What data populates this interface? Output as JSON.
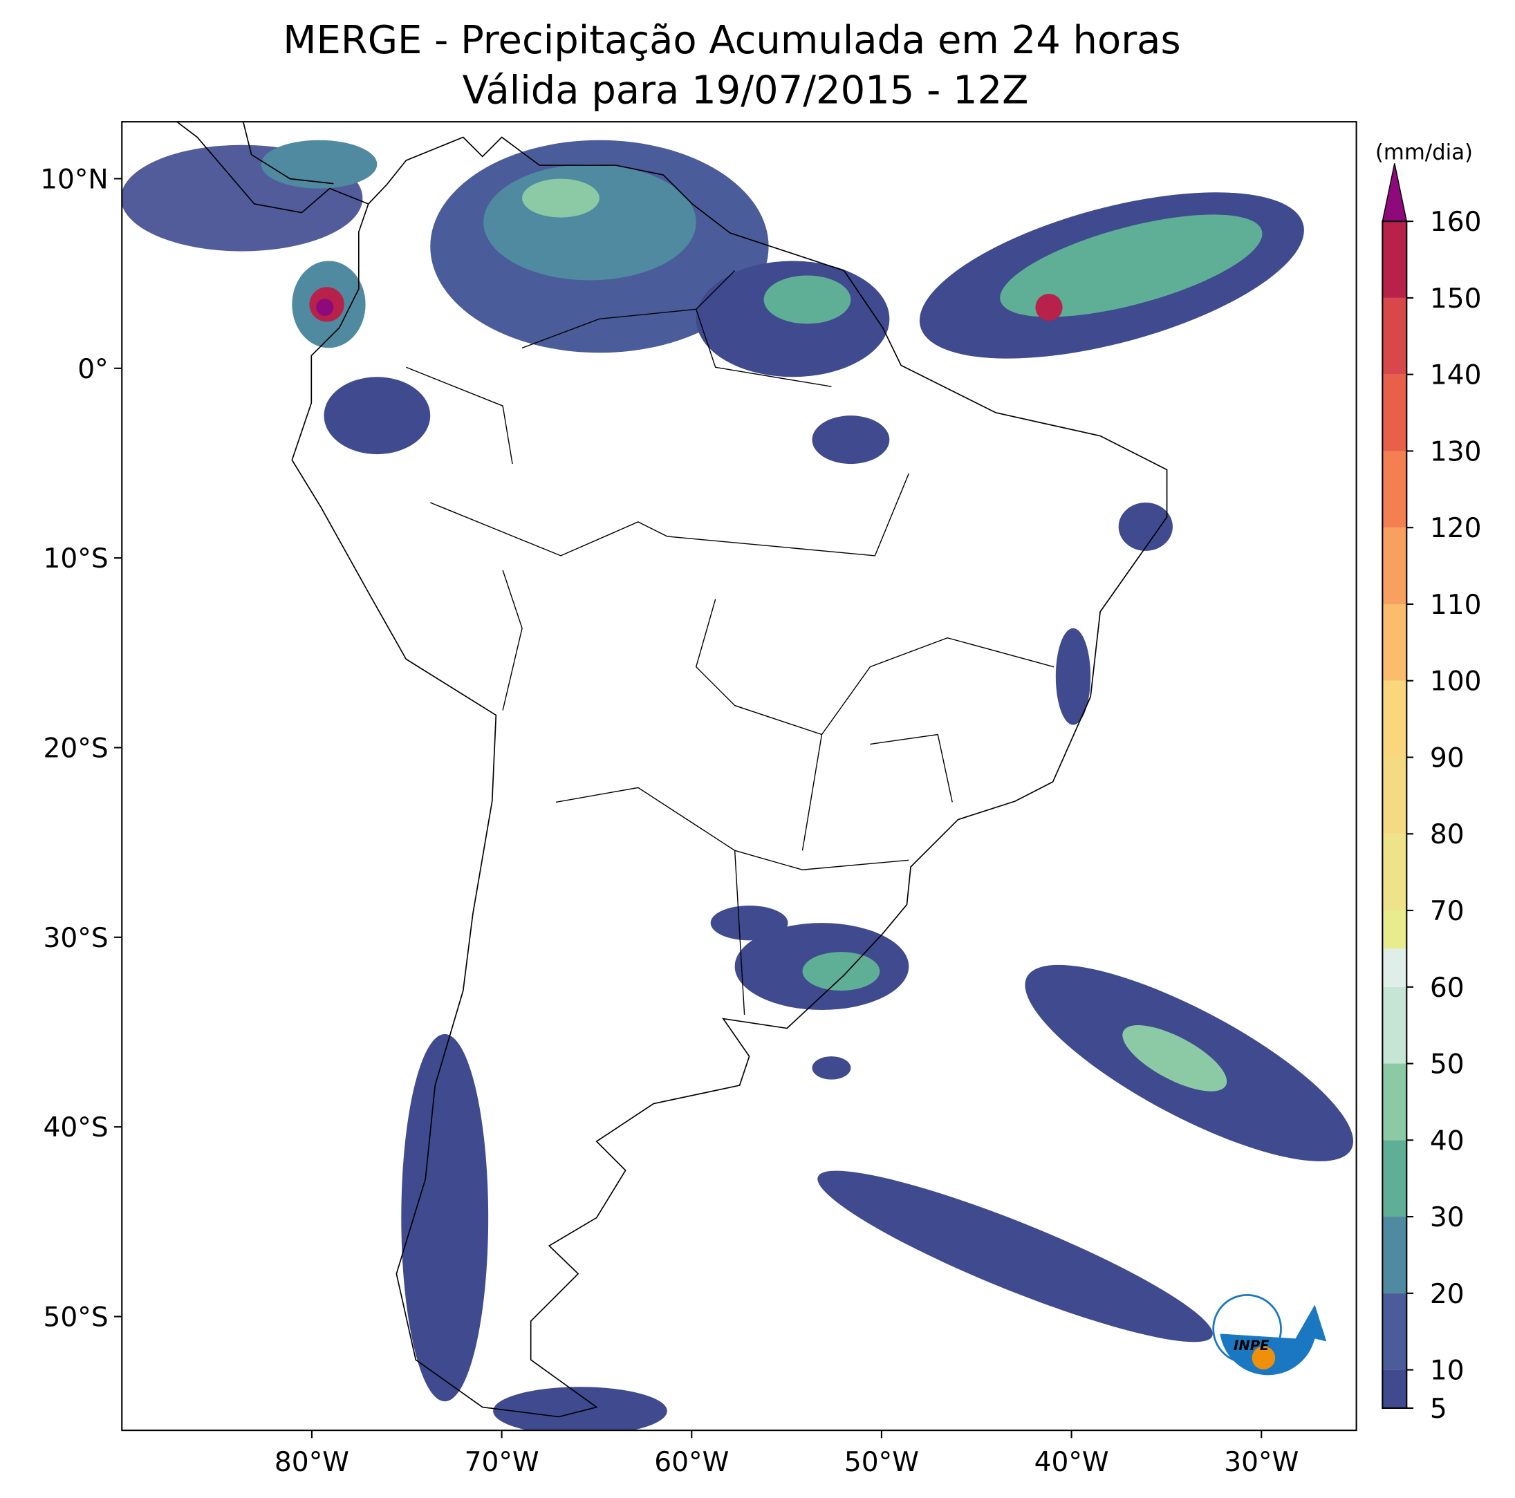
{
  "map": {
    "title": "MERGE - Precipitação Acumulada em 24 horas",
    "subtitle": "Válida para 19/07/2015 - 12Z",
    "xlim": [
      -90,
      -25
    ],
    "ylim": [
      -56,
      13
    ],
    "xticks": [
      {
        "value": -80,
        "label": "80°W"
      },
      {
        "value": -70,
        "label": "70°W"
      },
      {
        "value": -60,
        "label": "60°W"
      },
      {
        "value": -50,
        "label": "50°W"
      },
      {
        "value": -40,
        "label": "40°W"
      },
      {
        "value": -30,
        "label": "30°W"
      }
    ],
    "yticks": [
      {
        "value": 10,
        "label": "10°N"
      },
      {
        "value": 0,
        "label": "0°"
      },
      {
        "value": -10,
        "label": "10°S"
      },
      {
        "value": -20,
        "label": "20°S"
      },
      {
        "value": -30,
        "label": "30°S"
      },
      {
        "value": -40,
        "label": "40°S"
      },
      {
        "value": -50,
        "label": "50°S"
      }
    ],
    "colorbar": {
      "label": "(mm/dia)",
      "lim": [
        5,
        160
      ],
      "ticks": [
        5,
        10,
        20,
        30,
        40,
        50,
        60,
        70,
        80,
        90,
        100,
        110,
        120,
        130,
        140,
        150,
        160
      ],
      "bounds": [
        5,
        10,
        20,
        30,
        40,
        50,
        60,
        65,
        70,
        80,
        90,
        100,
        110,
        120,
        130,
        140,
        150,
        160
      ],
      "colors": [
        "#3f4a8f",
        "#4b5c9a",
        "#4f8aa0",
        "#5fae96",
        "#8bcaa5",
        "#c5e5d5",
        "#dfeee8",
        "#e8ec8f",
        "#eee28a",
        "#f5da84",
        "#fad67c",
        "#fbbd6c",
        "#f7a060",
        "#f47f50",
        "#e8604a",
        "#d8474a",
        "#b8224a"
      ],
      "extend_color": "#8e0a7a"
    },
    "logo": "INPE"
  }
}
